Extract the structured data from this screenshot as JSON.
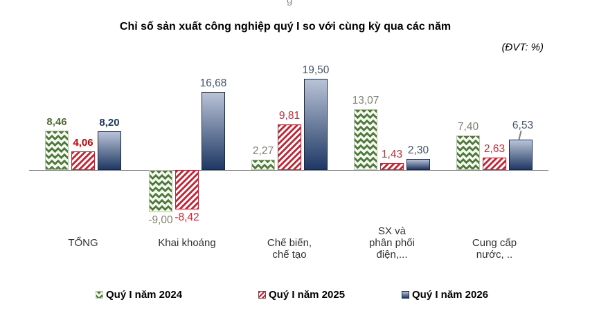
{
  "stray_glyph": "g",
  "title": "Chỉ số sản xuất công nghiệp quý I so với cùng kỳ qua các năm",
  "unit_note": "(ĐVT: %)",
  "chart_data": {
    "type": "bar",
    "title": "Chỉ số sản xuất công nghiệp quý I so với cùng kỳ qua các năm",
    "unit": "(ĐVT: %)",
    "categories": [
      [
        "TỔNG"
      ],
      [
        "Khai  khoáng"
      ],
      [
        "Chế biến,",
        "chế tạo"
      ],
      [
        "SX và",
        "phân phối",
        "điện,..."
      ],
      [
        "Cung cấp",
        "nước, .."
      ]
    ],
    "series": [
      {
        "name": "Quý I năm 2024",
        "style": "green-diamond",
        "values": [
          8.46,
          -9.0,
          2.27,
          13.07,
          7.4
        ],
        "labels": [
          "8,46",
          "-9,00",
          "2,27",
          "13,07",
          "7,40"
        ],
        "label_color": "#7d8370",
        "label_bold_color": "#4e6b30"
      },
      {
        "name": "Quý I năm 2025",
        "style": "red-hatch",
        "values": [
          4.06,
          -8.42,
          9.81,
          1.43,
          2.63
        ],
        "labels": [
          "4,06",
          "-8,42",
          "9,81",
          "1,43",
          "2,63"
        ],
        "label_color": "#cf2936",
        "label_bold_color": "#d00000"
      },
      {
        "name": "Quý I năm 2026",
        "style": "blue-gradient",
        "values": [
          8.2,
          16.68,
          19.5,
          2.3,
          6.53
        ],
        "labels": [
          "8,20",
          "16,68",
          "19,50",
          "2,30",
          "6,53"
        ],
        "label_color": "#44546a",
        "label_bold_color": "#1f3864"
      }
    ],
    "ylim": [
      -10,
      21
    ],
    "grid": false,
    "legend_position": "bottom",
    "colors": {
      "green": "#4e793c",
      "green_bg": "#f5f8ee",
      "green_border": "#bcc4a8",
      "red": "#cb2030",
      "red_bg": "#ffffff",
      "blue_top": "#b9c3d6",
      "blue_bottom": "#1f3864",
      "blue_border": "#16274a",
      "axis": "#808080"
    }
  }
}
